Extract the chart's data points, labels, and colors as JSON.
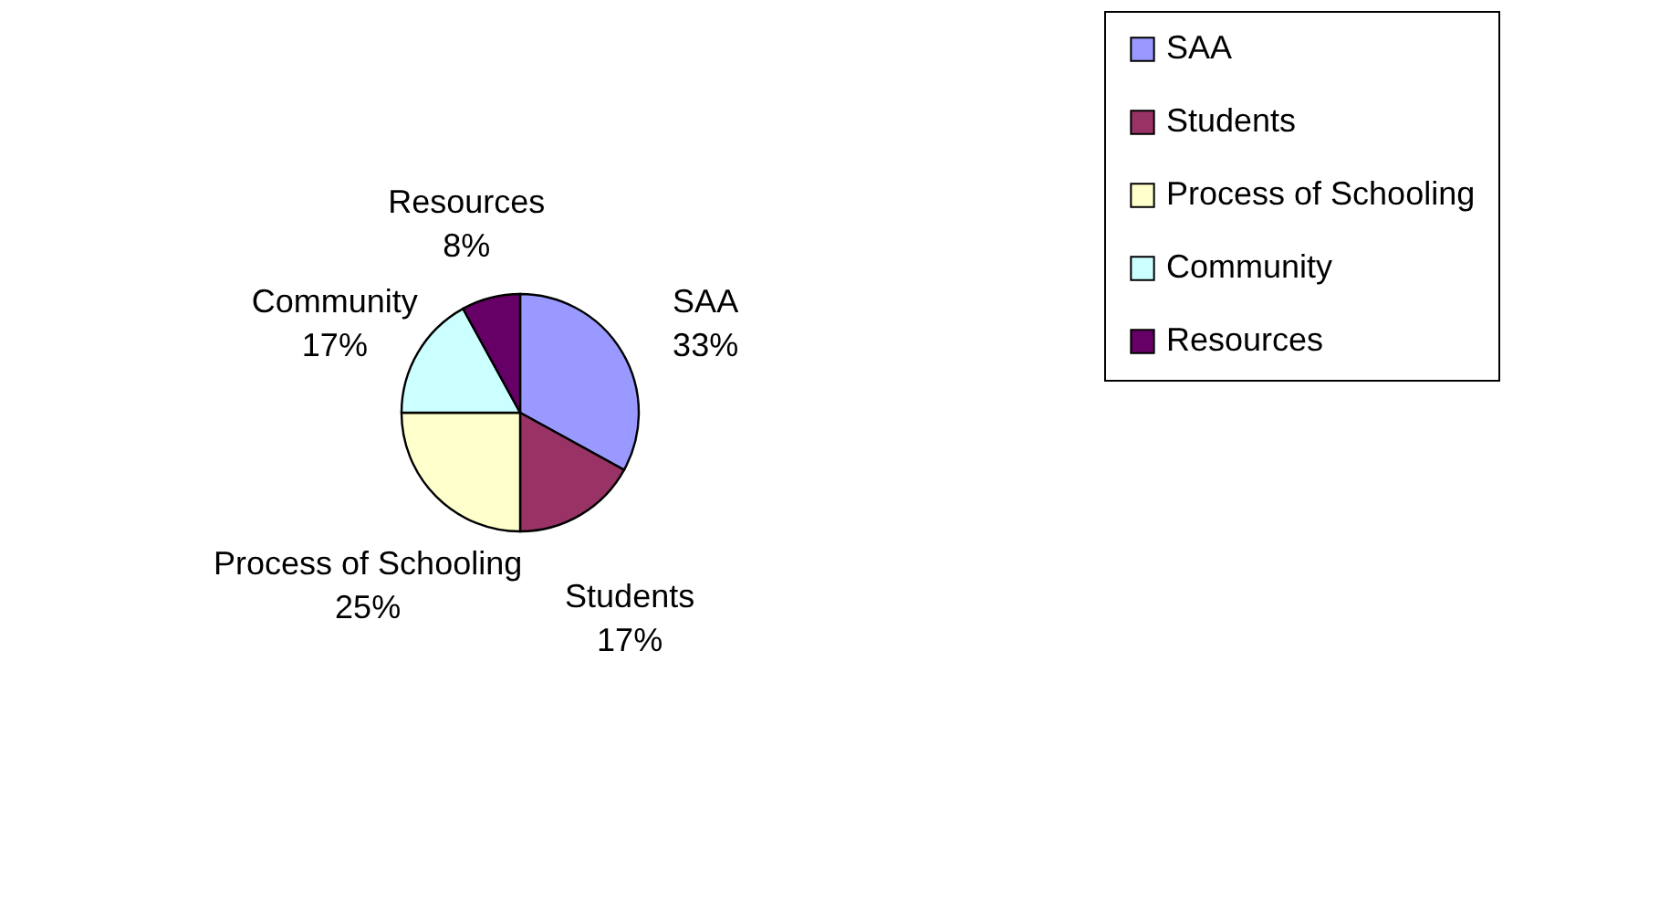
{
  "chart_data": {
    "type": "pie",
    "categories": [
      "SAA",
      "Students",
      "Process of Schooling",
      "Community",
      "Resources"
    ],
    "values": [
      33,
      17,
      25,
      17,
      8
    ],
    "value_labels": [
      "33%",
      "17%",
      "25%",
      "17%",
      "8%"
    ],
    "colors": [
      "#9999ff",
      "#993366",
      "#ffffcc",
      "#ccffff",
      "#660066"
    ],
    "legend": "right"
  }
}
